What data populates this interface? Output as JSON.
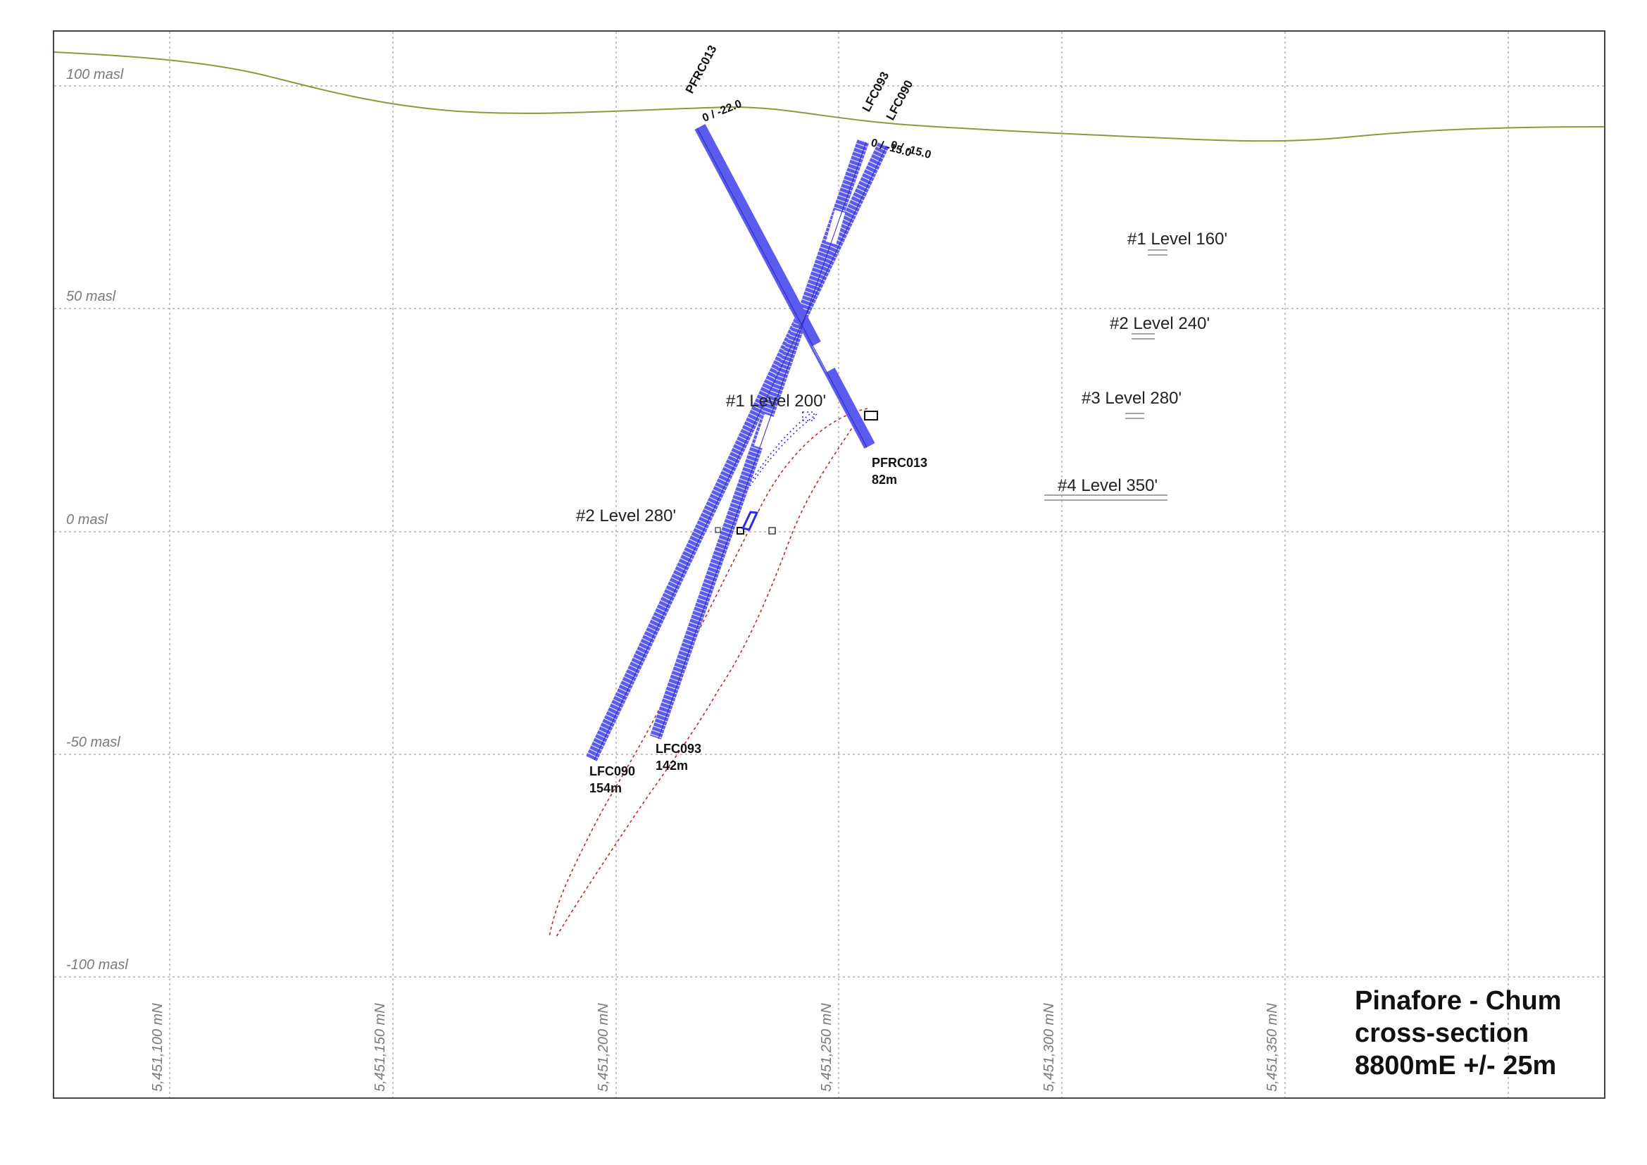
{
  "colors": {
    "topography": "#8a9a3a",
    "drillhole": "#5b5bf0",
    "drillhole_dark": "#2b2bb5",
    "interval_white": "#ffffff",
    "grid": "#b0b0b0",
    "frame": "#444444",
    "outline_red": "#c0282e",
    "outline_blue": "#2b2be0"
  },
  "elevation_labels": [
    "100 masl",
    "50 masl",
    "0 masl",
    "-50 masl",
    "-100 masl"
  ],
  "northing_labels": [
    "5,451,100 mN",
    "5,451,150 mN",
    "5,451,200 mN",
    "5,451,250 mN",
    "5,451,300 mN",
    "5,451,350 mN"
  ],
  "levels": [
    {
      "text": "#1 Level 160'"
    },
    {
      "text": "#2 Level 240'"
    },
    {
      "text": "#3 Level 280'"
    },
    {
      "text": "#4 Level 350'"
    },
    {
      "text": "#1 Level 200'"
    },
    {
      "text": "#2 Level 280'"
    }
  ],
  "holes": [
    {
      "name": "PFRC013",
      "collar_text": "0 / -22.0",
      "end_name": "PFRC013",
      "end_depth": "82m"
    },
    {
      "name": "LFC093",
      "collar_text": "0 / -15.0",
      "end_name": "LFC093",
      "end_depth": "142m"
    },
    {
      "name": "LFC090",
      "collar_text": "0 / -15.0",
      "end_name": "LFC090",
      "end_depth": "154m"
    }
  ],
  "title_lines": [
    "Pinafore - Chum",
    "cross-section",
    "8800mE +/- 25m"
  ]
}
